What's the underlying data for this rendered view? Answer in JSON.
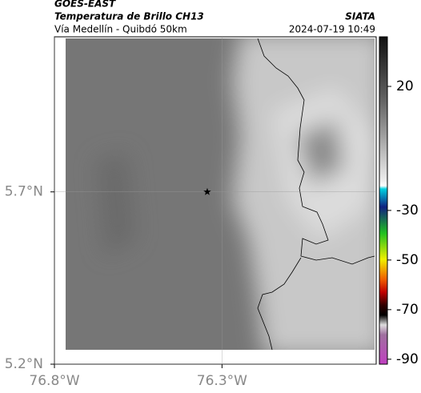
{
  "header": {
    "satellite": "GOES-EAST",
    "title": "Temperatura de Brillo CH13",
    "subtitle": "Vía Medellín - Quibdó 50km",
    "source": "SIATA",
    "datetime": "2024-07-19 10:49"
  },
  "map": {
    "xlim": [
      -76.8,
      -75.84
    ],
    "ylim": [
      5.2,
      6.15
    ],
    "xticks": [
      {
        "value": -76.8,
        "label": "76.8°W"
      },
      {
        "value": -76.3,
        "label": "76.3°W"
      }
    ],
    "yticks": [
      {
        "value": 5.2,
        "label": "5.2°N"
      },
      {
        "value": 5.7,
        "label": "5.7°N"
      }
    ],
    "marker": {
      "lon": -76.344,
      "lat": 5.7
    }
  },
  "colorbar": {
    "clim": [
      40,
      -92
    ],
    "ticks": [
      20,
      -30,
      -50,
      -70,
      -90
    ]
  }
}
